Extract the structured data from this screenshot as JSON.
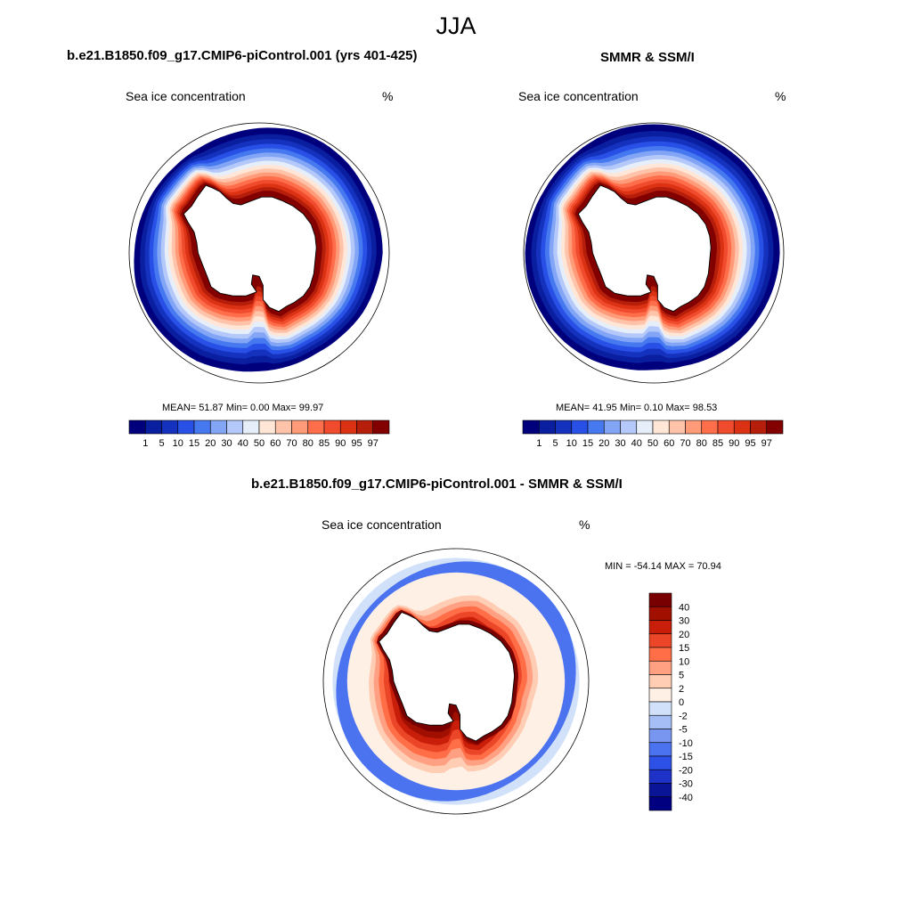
{
  "figure": {
    "season": "JJA",
    "colors": {
      "ice": [
        "#00007d",
        "#0a1ea0",
        "#1432be",
        "#2850e6",
        "#4678f0",
        "#82a5f5",
        "#b4c8fa",
        "#e6eefa",
        "#ffe6d7",
        "#ffc3aa",
        "#ff9b78",
        "#ff6e4b",
        "#f04b2d",
        "#dc3214",
        "#b41e0a",
        "#820000"
      ],
      "diff": [
        "#000080",
        "#0a1496",
        "#1e32c8",
        "#2d50e6",
        "#4b73f0",
        "#7896f0",
        "#a5bef5",
        "#d2e1fa",
        "#fff0e6",
        "#ffcdb4",
        "#ffa082",
        "#ff6e46",
        "#eb4628",
        "#c81e0a",
        "#a00f00",
        "#780000"
      ]
    }
  },
  "panels": [
    {
      "id": "model",
      "title": "b.e21.B1850.f09_g17.CMIP6-piControl.001 (yrs 401-425)",
      "variable": "Sea ice concentration",
      "units": "%",
      "stats": "MEAN=  51.87  Min=   0.00  Max=  99.97"
    },
    {
      "id": "obs",
      "title": "SMMR & SSM/I",
      "variable": "Sea ice concentration",
      "units": "%",
      "stats": "MEAN=  41.95  Min=   0.10  Max=  98.53"
    },
    {
      "id": "diff",
      "title": "b.e21.B1850.f09_g17.CMIP6-piControl.001 - SMMR & SSM/I",
      "variable": "Sea ice concentration",
      "units": "%",
      "stats": "MIN = -54.14 MAX =  70.94"
    }
  ],
  "chart_data": [
    {
      "type": "heatmap",
      "title": "b.e21.B1850.f09_g17.CMIP6-piControl.001 (yrs 401-425)",
      "variable": "Sea ice concentration",
      "units": "%",
      "projection": "south polar stereographic",
      "colorbar_ticks": [
        "1",
        "5",
        "10",
        "15",
        "20",
        "30",
        "40",
        "50",
        "60",
        "70",
        "80",
        "85",
        "90",
        "95",
        "97"
      ],
      "stats": {
        "mean": 51.87,
        "min": 0.0,
        "max": 99.97
      },
      "pattern": {
        "ice_edge": [
          0.95,
          0.93,
          0.92,
          0.9,
          0.89,
          0.9,
          0.91,
          0.93,
          0.96,
          0.97,
          0.98,
          0.98,
          0.96,
          0.95,
          0.94,
          0.93,
          0.93,
          0.94,
          0.96,
          0.98,
          0.98,
          0.97,
          0.95,
          0.95
        ]
      }
    },
    {
      "type": "heatmap",
      "title": "SMMR & SSM/I",
      "variable": "Sea ice concentration",
      "units": "%",
      "projection": "south polar stereographic",
      "colorbar_ticks": [
        "1",
        "5",
        "10",
        "15",
        "20",
        "30",
        "40",
        "50",
        "60",
        "70",
        "80",
        "85",
        "90",
        "95",
        "97"
      ],
      "stats": {
        "mean": 41.95,
        "min": 0.1,
        "max": 98.53
      },
      "pattern": {
        "ice_edge": [
          0.97,
          0.96,
          0.95,
          0.94,
          0.92,
          0.9,
          0.9,
          0.92,
          0.95,
          0.97,
          0.98,
          0.99,
          0.99,
          0.98,
          0.97,
          0.97,
          0.98,
          0.99,
          0.99,
          0.99,
          0.98,
          0.98,
          0.97,
          0.97
        ]
      }
    },
    {
      "type": "heatmap",
      "title": "b.e21.B1850.f09_g17.CMIP6-piControl.001 - SMMR & SSM/I",
      "variable": "Sea ice concentration",
      "units": "%",
      "projection": "south polar stereographic",
      "colorbar_levels": [
        "40",
        "30",
        "20",
        "15",
        "10",
        "5",
        "2",
        "0",
        "-2",
        "-5",
        "-10",
        "-15",
        "-20",
        "-30",
        "-40"
      ],
      "stats": {
        "min": -54.14,
        "max": 70.94
      },
      "pattern": {
        "positive_band": [
          0.4,
          0.3,
          0.3,
          0.4,
          0.6,
          0.7,
          0.8,
          0.9,
          0.9,
          0.8,
          0.7,
          0.6,
          0.5,
          0.4,
          0.3,
          0.3,
          0.3,
          0.4,
          0.5,
          0.6,
          0.5,
          0.5,
          0.4,
          0.4
        ]
      }
    }
  ]
}
